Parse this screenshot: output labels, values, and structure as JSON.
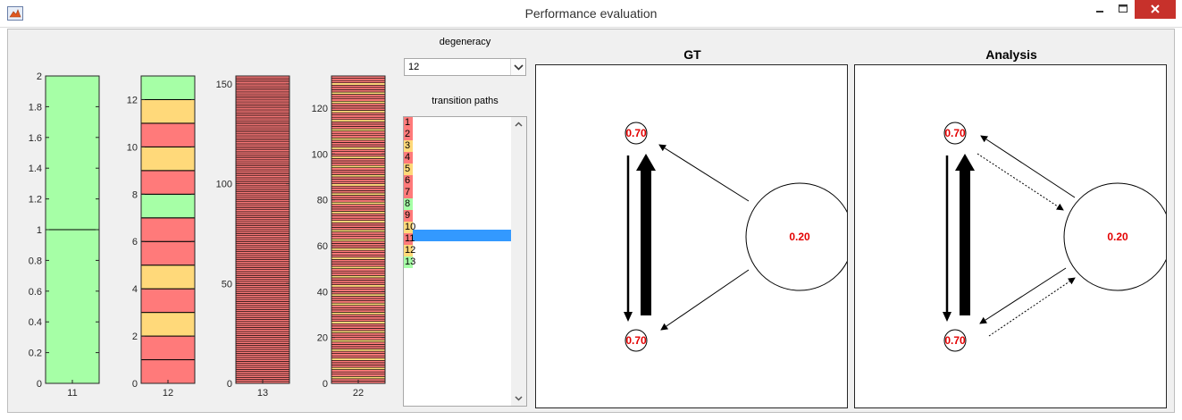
{
  "window": {
    "title": "Performance evaluation"
  },
  "colors": {
    "green": "#a6ffa6",
    "yellow": "#ffd97a",
    "red": "#ff7a7a",
    "selection": "#3399ff"
  },
  "bar_charts": [
    {
      "xlabel": "11",
      "ylim": [
        0,
        2
      ],
      "yticks": [
        "0",
        "0.2",
        "0.4",
        "0.6",
        "0.8",
        "1",
        "1.2",
        "1.4",
        "1.6",
        "1.8",
        "2"
      ],
      "segments": [
        "green",
        "green"
      ]
    },
    {
      "xlabel": "12",
      "ylim": [
        0,
        13
      ],
      "yticks": [
        "0",
        "2",
        "4",
        "6",
        "8",
        "10",
        "12"
      ],
      "segments": [
        "red",
        "red",
        "yellow",
        "red",
        "yellow",
        "red",
        "red",
        "green",
        "red",
        "yellow",
        "red",
        "yellow",
        "green"
      ]
    },
    {
      "xlabel": "13",
      "ylim": [
        0,
        154
      ],
      "yticks": [
        "0",
        "50",
        "100",
        "150"
      ],
      "segments_count": 154,
      "pattern": [
        "red"
      ]
    },
    {
      "xlabel": "22",
      "ylim": [
        0,
        134
      ],
      "yticks": [
        "0",
        "20",
        "40",
        "60",
        "80",
        "100",
        "120"
      ],
      "segments_count": 134,
      "pattern": [
        "red",
        "red",
        "yellow",
        "red"
      ]
    }
  ],
  "controls": {
    "degeneracy_label": "degeneracy",
    "degeneracy_value": "12",
    "transition_paths_label": "transition paths",
    "transition_paths": [
      {
        "label": "1",
        "color": "red"
      },
      {
        "label": "2",
        "color": "red"
      },
      {
        "label": "3",
        "color": "yellow"
      },
      {
        "label": "4",
        "color": "red"
      },
      {
        "label": "5",
        "color": "yellow"
      },
      {
        "label": "6",
        "color": "red"
      },
      {
        "label": "7",
        "color": "red"
      },
      {
        "label": "8",
        "color": "green"
      },
      {
        "label": "9",
        "color": "red"
      },
      {
        "label": "10",
        "color": "yellow",
        "selected": true
      },
      {
        "label": "11",
        "color": "red"
      },
      {
        "label": "12",
        "color": "yellow"
      },
      {
        "label": "13",
        "color": "green"
      }
    ]
  },
  "networks": [
    {
      "title": "GT",
      "nodes": {
        "top": "0.70",
        "big": "0.20",
        "bottom": "0.70"
      }
    },
    {
      "title": "Analysis",
      "nodes": {
        "top": "0.70",
        "big": "0.20",
        "bottom": "0.70"
      }
    }
  ]
}
